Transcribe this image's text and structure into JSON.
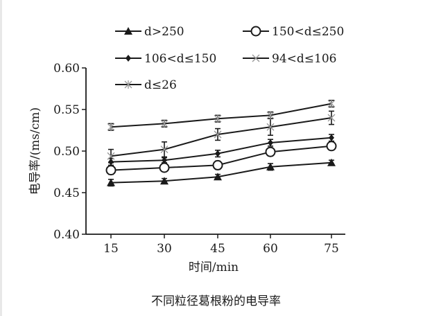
{
  "chart_data": {
    "type": "line",
    "title": "",
    "caption": "不同粒径葛根粉的电导率",
    "xlabel": "时间/min",
    "ylabel": "电导率/(ms/cm)",
    "x": [
      15,
      30,
      45,
      60,
      75
    ],
    "x_tick_labels": [
      "15",
      "30",
      "45",
      "60",
      "75"
    ],
    "ylim": [
      0.4,
      0.6
    ],
    "y_ticks": [
      0.4,
      0.45,
      0.5,
      0.55,
      0.6
    ],
    "y_tick_labels": [
      "0.40",
      "0.45",
      "0.50",
      "0.55",
      "0.60"
    ],
    "grid": false,
    "legend_position": "top",
    "series": [
      {
        "name": "d>250",
        "marker": "triangle",
        "color": "#1a1a1a",
        "values": [
          0.462,
          0.464,
          0.469,
          0.481,
          0.486
        ],
        "errors": [
          0.004,
          0.003,
          0.003,
          0.004,
          0.003
        ]
      },
      {
        "name": "150<d≤250",
        "marker": "open-circle",
        "color": "#1a1a1a",
        "values": [
          0.477,
          0.48,
          0.483,
          0.499,
          0.506
        ],
        "errors": [
          0.005,
          0.004,
          0.005,
          0.005,
          0.004
        ]
      },
      {
        "name": "106<d≤150",
        "marker": "diamond",
        "color": "#1a1a1a",
        "values": [
          0.487,
          0.489,
          0.497,
          0.51,
          0.516
        ],
        "errors": [
          0.004,
          0.003,
          0.004,
          0.004,
          0.004
        ]
      },
      {
        "name": "94<d≤106",
        "marker": "x-mark",
        "color": "#9a9a9a",
        "values": [
          0.494,
          0.502,
          0.52,
          0.529,
          0.54
        ],
        "errors": [
          0.008,
          0.009,
          0.007,
          0.01,
          0.008
        ]
      },
      {
        "name": "d≤26",
        "marker": "star",
        "color": "#9a9a9a",
        "values": [
          0.529,
          0.533,
          0.539,
          0.543,
          0.557
        ],
        "errors": [
          0.004,
          0.004,
          0.004,
          0.004,
          0.004
        ]
      }
    ]
  }
}
